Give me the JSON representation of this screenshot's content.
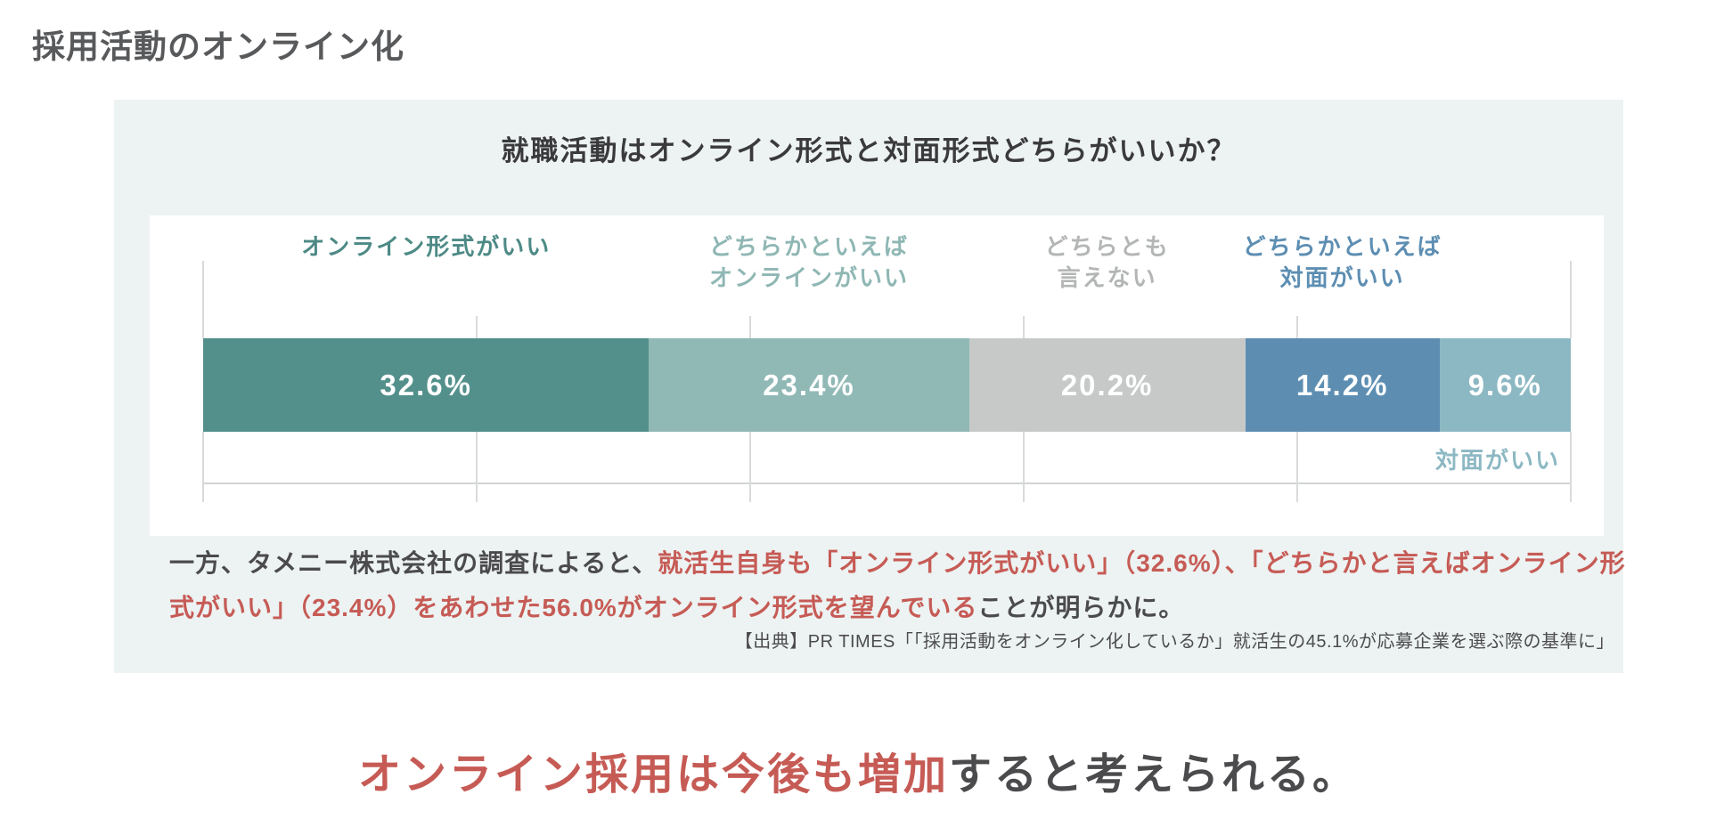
{
  "page": {
    "title": "採用活動のオンライン化",
    "headline": {
      "highlight": "オンライン採用は今後も増加",
      "rest": "すると考えられる。"
    }
  },
  "card": {
    "title": "就職活動はオンライン形式と対面形式どちらがいいか？",
    "body": {
      "lead": "一方、タメニー株式会社の調査によると、",
      "highlight": "就活生自身も「オンライン形式がいい」（32.6%）、「どちらかと言えばオンライン形式がいい」（23.4%）をあわせた56.0%がオンライン形式を望んでいる",
      "rest": "ことが明らかに。"
    },
    "source": "【出典】PR TIMES「「採用活動をオンライン化しているか」就活生の45.1%が応募企業を選ぶ際の基準に」"
  },
  "labels": {
    "seg1": {
      "line1": "オンライン形式がいい",
      "line2": ""
    },
    "seg2": {
      "line1": "どちらかといえば",
      "line2": "オンラインがいい"
    },
    "seg3": {
      "line1": "どちらとも",
      "line2": "言えない"
    },
    "seg4": {
      "line1": "どちらかといえば",
      "line2": "対面がいい"
    },
    "seg5": {
      "line1": "対面がいい",
      "line2": ""
    }
  },
  "chart_data": {
    "type": "bar",
    "orientation": "horizontal-stacked",
    "title": "就職活動はオンライン形式と対面形式どちらがいいか？",
    "categories": [
      "オンライン形式がいい",
      "どちらかといえばオンラインがいい",
      "どちらとも言えない",
      "どちらかといえば対面がいい",
      "対面がいい"
    ],
    "values": [
      32.6,
      23.4,
      20.2,
      14.2,
      9.6
    ],
    "value_labels": [
      "32.6%",
      "23.4%",
      "20.2%",
      "14.2%",
      "9.6%"
    ],
    "unit": "%",
    "xlim": [
      0,
      100
    ],
    "gridlines_percent": [
      0,
      20,
      40,
      60,
      80,
      100
    ],
    "colors": [
      "#53908c",
      "#90b9b6",
      "#c7c9c9",
      "#5d8eb2",
      "#8cb8c3"
    ],
    "label_colors": [
      "#4d8a86",
      "#8fb7b4",
      "#b4b6b6",
      "#5d8eb2",
      "#8cb8c3"
    ],
    "grid_color": "#d9dbdb",
    "legend_position": "labels-above-and-below-bar"
  },
  "theme": {
    "accent_red": "#c65b55",
    "text_dark": "#4b4b4d",
    "card_background": "#edf2f2"
  }
}
